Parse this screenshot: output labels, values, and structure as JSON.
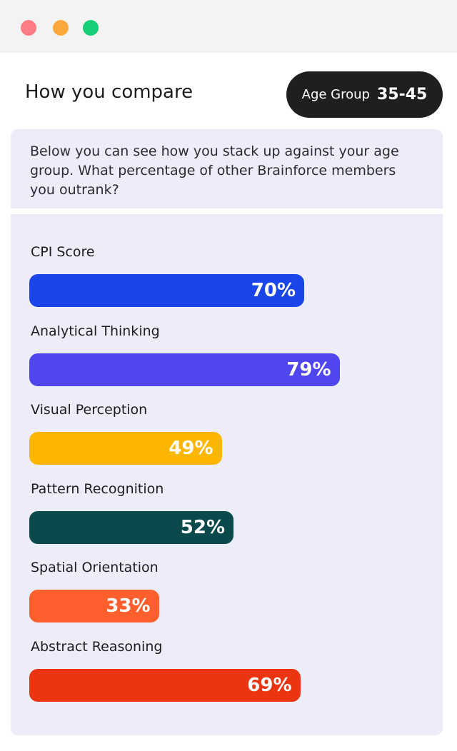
{
  "header": {
    "title": "How you compare",
    "badge_label": "Age Group",
    "badge_value": "35-45"
  },
  "description": "Below you can see how you stack up against your age group. What percentage of other Brainforce members you outrank?",
  "chart_data": {
    "type": "bar",
    "orientation": "horizontal",
    "categories": [
      "CPI Score",
      "Analytical Thinking",
      "Visual Perception",
      "Pattern Recognition",
      "Spatial Orientation",
      "Abstract Reasoning"
    ],
    "values": [
      70,
      79,
      49,
      52,
      33,
      69
    ],
    "value_labels": [
      "70%",
      "79%",
      "49%",
      "52%",
      "33%",
      "69%"
    ],
    "colors": [
      "#1a45ea",
      "#5046f0",
      "#fdb600",
      "#0b4a4c",
      "#fe5f2d",
      "#ea3510"
    ],
    "xlim": [
      0,
      100
    ]
  }
}
